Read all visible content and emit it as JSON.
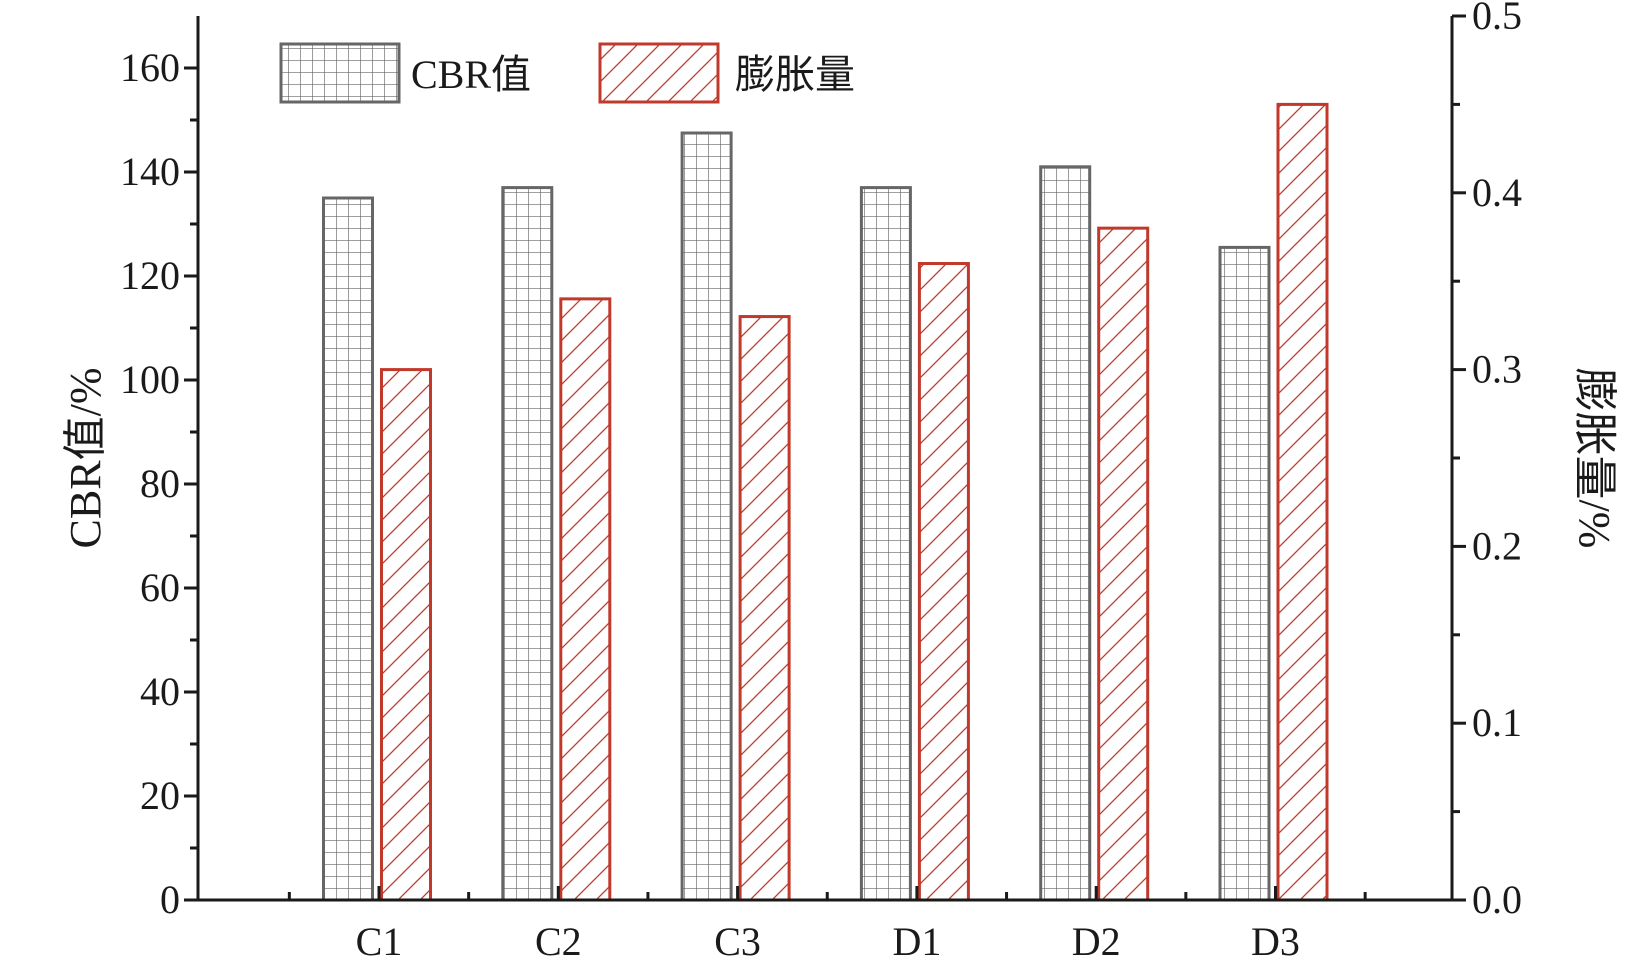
{
  "chart_data": {
    "type": "bar",
    "categories": [
      "C1",
      "C2",
      "C3",
      "D1",
      "D2",
      "D3"
    ],
    "series": [
      {
        "name": "CBR值",
        "axis": "left",
        "values": [
          135,
          137,
          147.5,
          137,
          141,
          125.5
        ],
        "color": "#666666",
        "pattern": "grid"
      },
      {
        "name": "膨胀量",
        "axis": "right",
        "values": [
          0.3,
          0.34,
          0.33,
          0.36,
          0.38,
          0.45
        ],
        "color": "#c0392b",
        "pattern": "hatch"
      }
    ],
    "ylabel": "CBR值/%",
    "y2label": "膨胀量/%",
    "xlabel": "",
    "ylim": [
      0,
      170
    ],
    "y2lim": [
      0,
      0.5
    ],
    "yticks": [
      "0",
      "20",
      "40",
      "60",
      "80",
      "100",
      "120",
      "140",
      "160"
    ],
    "y2ticks": [
      "0.0",
      "0.1",
      "0.2",
      "0.3",
      "0.4",
      "0.5"
    ],
    "legend_position": "top-left",
    "grid": false
  }
}
